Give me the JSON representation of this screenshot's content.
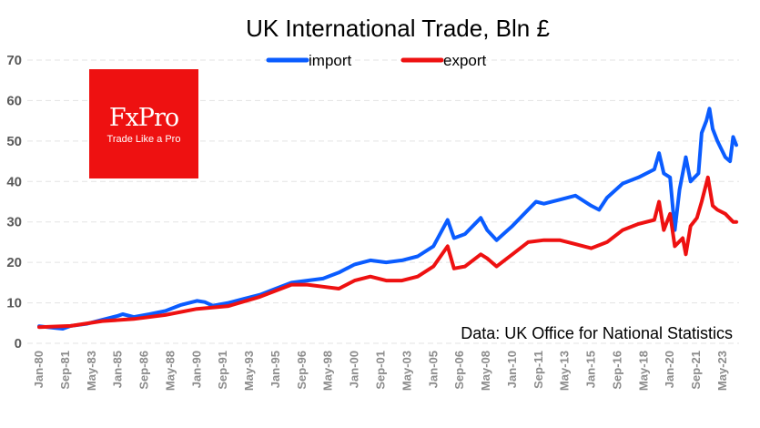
{
  "chart_data": {
    "type": "line",
    "title": "UK International Trade, Bln £",
    "xlabel": "",
    "ylabel": "",
    "ylim": [
      0,
      70
    ],
    "yticks": [
      0,
      10,
      20,
      30,
      40,
      50,
      60,
      70
    ],
    "xlim": [
      1980,
      2024.25
    ],
    "xtick_labels": [
      "Jan-80",
      "Sep-81",
      "May-83",
      "Jan-85",
      "Sep-86",
      "May-88",
      "Jan-90",
      "Sep-91",
      "May-93",
      "Jan-95",
      "Sep-96",
      "May-98",
      "Jan-00",
      "Sep-01",
      "May-03",
      "Jan-05",
      "Sep-06",
      "May-08",
      "Jan-10",
      "Sep-11",
      "May-13",
      "Jan-15",
      "Sep-16",
      "May-18",
      "Jan-20",
      "Sep-21",
      "May-23"
    ],
    "grid": true,
    "legend": "top-center",
    "series": [
      {
        "name": "import",
        "color": "#0a5cff",
        "x": [
          1980,
          1981,
          1981.5,
          1982,
          1983,
          1984,
          1985,
          1985.3,
          1986,
          1987,
          1988,
          1989,
          1990,
          1990.5,
          1991,
          1992,
          1993,
          1994,
          1995,
          1996,
          1997,
          1998,
          1999,
          2000,
          2001,
          2002,
          2003,
          2004,
          2005,
          2005.9,
          2006.3,
          2007,
          2008,
          2008.4,
          2009,
          2010,
          2011,
          2011.5,
          2012,
          2013,
          2014,
          2015,
          2015.5,
          2016,
          2017,
          2018,
          2019,
          2019.3,
          2019.6,
          2020,
          2020.3,
          2020.6,
          2021,
          2021.3,
          2021.8,
          2022,
          2022.3,
          2022.5,
          2022.7,
          2023,
          2023.5,
          2023.8,
          2024,
          2024.2
        ],
        "values": [
          4.2,
          3.8,
          3.6,
          4.3,
          4.8,
          5.8,
          6.8,
          7.2,
          6.5,
          7.2,
          8.0,
          9.5,
          10.5,
          10.2,
          9.3,
          10.0,
          11.0,
          12.0,
          13.5,
          15.0,
          15.5,
          16.0,
          17.5,
          19.5,
          20.5,
          20.0,
          20.5,
          21.5,
          24.0,
          30.5,
          26.0,
          27.0,
          31.0,
          28.0,
          25.5,
          29.0,
          33.0,
          35.0,
          34.5,
          35.5,
          36.5,
          34.0,
          33.0,
          36.0,
          39.5,
          41.0,
          43.0,
          47.0,
          42.0,
          41.0,
          28.0,
          38.0,
          46.0,
          40.0,
          42.0,
          52.0,
          55.0,
          58.0,
          53.0,
          50.0,
          46.0,
          45.0,
          51.0,
          49.0
        ]
      },
      {
        "name": "export",
        "color": "#ee1111",
        "x": [
          1980,
          1982,
          1984,
          1986,
          1988,
          1990,
          1992,
          1994,
          1996,
          1997,
          1998,
          1999,
          2000,
          2001,
          2002,
          2003,
          2004,
          2005,
          2005.9,
          2006.3,
          2007,
          2008,
          2008.4,
          2009,
          2010,
          2011,
          2012,
          2013,
          2014,
          2015,
          2016,
          2017,
          2018,
          2019,
          2019.3,
          2019.6,
          2020,
          2020.3,
          2020.8,
          2021,
          2021.3,
          2021.7,
          2022,
          2022.4,
          2022.7,
          2023,
          2023.5,
          2024,
          2024.2
        ],
        "values": [
          4.0,
          4.3,
          5.5,
          6.0,
          7.0,
          8.5,
          9.2,
          11.5,
          14.5,
          14.5,
          14.0,
          13.5,
          15.5,
          16.5,
          15.5,
          15.5,
          16.5,
          19.0,
          24.0,
          18.5,
          19.0,
          22.0,
          21.0,
          19.0,
          22.0,
          25.0,
          25.5,
          25.5,
          24.5,
          23.5,
          25.0,
          28.0,
          29.5,
          30.5,
          35.0,
          28.0,
          32.0,
          24.0,
          26.0,
          22.0,
          29.0,
          31.0,
          35.0,
          41.0,
          34.0,
          33.0,
          32.0,
          30.0,
          30.0
        ]
      }
    ],
    "annotation": "Data: UK Office for National Statistics"
  },
  "logo": {
    "brand": "FxPro",
    "tagline": "Trade Like a Pro"
  }
}
